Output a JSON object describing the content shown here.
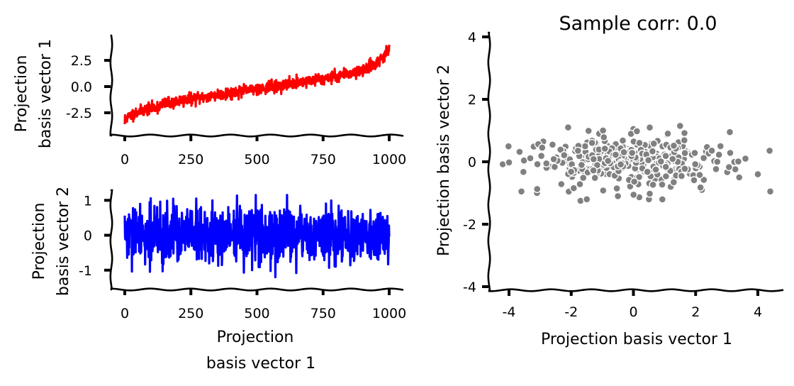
{
  "chart_data": [
    {
      "type": "line",
      "panel": "top-left",
      "title": "",
      "xlabel": "",
      "ylabel": [
        "Projection",
        "basis vector 1"
      ],
      "xlim": [
        -50,
        1050
      ],
      "ylim": [
        -4.2,
        4.2
      ],
      "xticks": [
        0,
        250,
        500,
        750,
        1000
      ],
      "xtick_labels": [
        "0",
        "250",
        "500",
        "750",
        "1000"
      ],
      "yticks": [
        -2.5,
        0.0,
        2.5
      ],
      "ytick_labels": [
        "-2.5",
        "0.0",
        "2.5"
      ],
      "series": [
        {
          "color": "#ff0000",
          "n_points": 1000,
          "x": [
            0,
            50,
            100,
            150,
            200,
            250,
            300,
            350,
            400,
            450,
            500,
            550,
            600,
            650,
            700,
            750,
            800,
            850,
            900,
            950,
            1000
          ],
          "y": [
            -3.1,
            -2.4,
            -2.1,
            -1.7,
            -1.4,
            -1.2,
            -1.0,
            -0.8,
            -0.6,
            -0.4,
            -0.2,
            -0.05,
            0.15,
            0.35,
            0.55,
            0.8,
            1.0,
            1.3,
            1.6,
            2.2,
            3.5
          ],
          "noise_amplitude": 0.5
        }
      ],
      "grid": false
    },
    {
      "type": "line",
      "panel": "bottom-left",
      "title": "",
      "xlabel": [
        "Projection",
        "basis vector 1"
      ],
      "ylabel": [
        "Projection",
        "basis vector 2"
      ],
      "xlim": [
        -50,
        1050
      ],
      "ylim": [
        -1.35,
        1.25
      ],
      "xticks": [
        0,
        250,
        500,
        750,
        1000
      ],
      "xtick_labels": [
        "0",
        "250",
        "500",
        "750",
        "1000"
      ],
      "yticks": [
        -1,
        0,
        1
      ],
      "ytick_labels": [
        "-1",
        "0",
        "1"
      ],
      "series": [
        {
          "color": "#0000ff",
          "n_points": 1000,
          "value_range": [
            -1.3,
            1.15
          ],
          "typical_std": 0.4
        }
      ],
      "grid": false
    },
    {
      "type": "scatter",
      "panel": "right",
      "title": "Sample corr: 0.0",
      "xlabel": "Projection basis vector 1",
      "ylabel": "Projection basis vector 2",
      "xlim": [
        -4.9,
        4.9
      ],
      "ylim": [
        -4.0,
        4.0
      ],
      "xticks": [
        -4,
        -2,
        0,
        2,
        4
      ],
      "xtick_labels": [
        "-4",
        "-2",
        "0",
        "2",
        "4"
      ],
      "yticks": [
        -4,
        -2,
        0,
        2,
        4
      ],
      "ytick_labels": [
        "-4",
        "-2",
        "0",
        "2",
        "4"
      ],
      "series": [
        {
          "color": "#808080",
          "n_points": 1000,
          "x_range": [
            -4.2,
            4.4
          ],
          "y_range": [
            -1.3,
            1.15
          ],
          "points": [
            [
              -4.2,
              -0.08
            ],
            [
              -4.0,
              -0.02
            ],
            [
              -3.6,
              -0.95
            ],
            [
              -3.2,
              0.5
            ],
            [
              -3.1,
              -1.0
            ],
            [
              -2.9,
              0.65
            ],
            [
              -2.6,
              0.55
            ],
            [
              -2.1,
              1.1
            ],
            [
              -2.0,
              -0.4
            ],
            [
              -1.7,
              -1.25
            ],
            [
              -1.5,
              -1.2
            ],
            [
              -1.1,
              0.9
            ],
            [
              -0.5,
              -1.1
            ],
            [
              0.0,
              1.05
            ],
            [
              0.5,
              -1.2
            ],
            [
              1.5,
              1.15
            ],
            [
              2.2,
              -0.9
            ],
            [
              2.8,
              0.5
            ],
            [
              3.1,
              0.95
            ],
            [
              3.4,
              -0.5
            ],
            [
              3.6,
              0.1
            ],
            [
              4.0,
              -0.4
            ],
            [
              4.4,
              -0.95
            ]
          ]
        }
      ],
      "grid": false
    }
  ]
}
